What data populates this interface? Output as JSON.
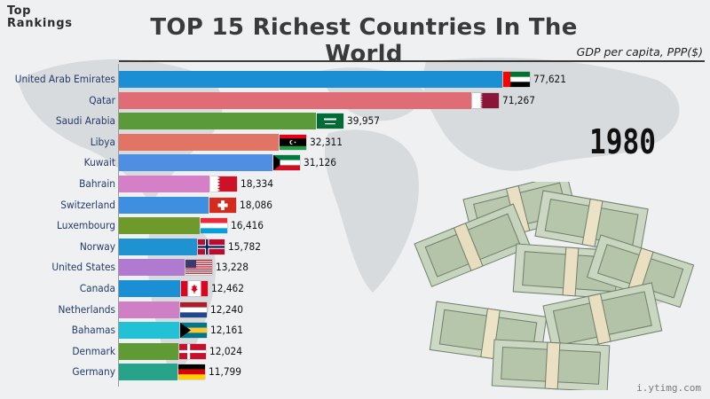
{
  "logo": {
    "line1": "Top",
    "line2": "Rankings"
  },
  "watermark": "i.ytimg.com",
  "year": "1980",
  "chart_data": {
    "type": "bar",
    "orientation": "horizontal",
    "title": "TOP 15 Richest Countries In The World",
    "subtitle": "GDP per capita, PPP($)",
    "xlim": [
      0,
      77621
    ],
    "categories": [
      "United Arab Emirates",
      "Qatar",
      "Saudi Arabia",
      "Libya",
      "Kuwait",
      "Bahrain",
      "Switzerland",
      "Luxembourg",
      "Norway",
      "United States",
      "Canada",
      "Netherlands",
      "Bahamas",
      "Denmark",
      "Germany"
    ],
    "values": [
      77621,
      71267,
      39957,
      32311,
      31126,
      18334,
      18086,
      16416,
      15782,
      13228,
      12462,
      12240,
      12161,
      12024,
      11799
    ],
    "value_labels": [
      "77,621",
      "71,267",
      "39,957",
      "32,311",
      "31,126",
      "18,334",
      "18,086",
      "16,416",
      "15,782",
      "13,228",
      "12,462",
      "12,240",
      "12,161",
      "12,024",
      "11,799"
    ],
    "colors": [
      "#1a8fd3",
      "#e06c75",
      "#5b9a3b",
      "#e27466",
      "#4f8fe3",
      "#d57fc9",
      "#3f8fe0",
      "#6e9a2c",
      "#1f93d1",
      "#b07ad1",
      "#1a8fd3",
      "#cf7fc3",
      "#22c1d5",
      "#5f9a35",
      "#27a38a"
    ],
    "flags": [
      "uae",
      "qatar",
      "saudi",
      "libya",
      "kuwait",
      "bahrain",
      "switzerland",
      "luxembourg",
      "norway",
      "usa",
      "canada",
      "netherlands",
      "bahamas",
      "denmark",
      "germany"
    ]
  }
}
